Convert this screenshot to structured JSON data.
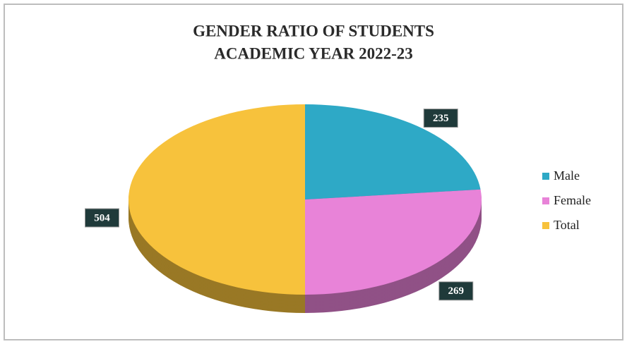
{
  "chart_data": {
    "type": "pie",
    "title": [
      "GENDER RATIO OF STUDENTS",
      "ACADEMIC YEAR 2022-23"
    ],
    "categories": [
      "Male",
      "Female",
      "Total"
    ],
    "values": [
      235,
      269,
      504
    ],
    "colors": [
      "#2ea9c6",
      "#e883d8",
      "#f7c23c"
    ],
    "legend": "right"
  }
}
